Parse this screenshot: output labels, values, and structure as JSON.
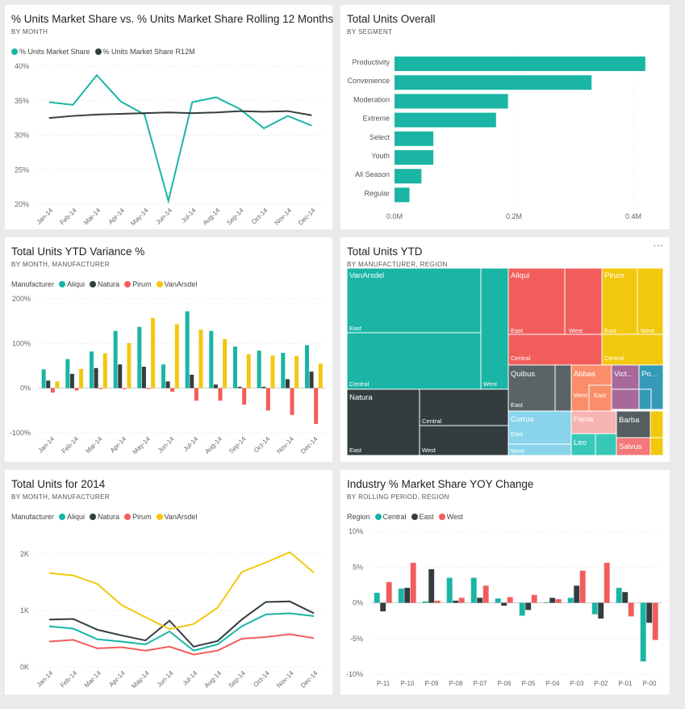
{
  "months": [
    "Jan-14",
    "Feb-14",
    "Mar-14",
    "Apr-14",
    "May-14",
    "Jun-14",
    "Jul-14",
    "Aug-14",
    "Sep-14",
    "Oct-14",
    "Nov-14",
    "Dec-14"
  ],
  "colors": {
    "aliqui": "#1ab5a4",
    "natura": "#333d3f",
    "pirum": "#f25d5c",
    "vanarsdel": "#f2c80f",
    "central": "#1ab5a4",
    "east": "#333d3f",
    "west": "#f25d5c",
    "trend": "#1ab5a4",
    "r12": "#333d3f",
    "quibus": "#5a6366",
    "abbas": "#fb8e6a",
    "victoria": "#a66999",
    "pomum": "#3599b8",
    "currus": "#8ad4eb",
    "fama": "#f5b4b2",
    "barba": "#555f61",
    "leo": "#37c9b8",
    "salvus": "#f37877",
    "natura_tm": "#333d3f",
    "extra": "#f2c80f"
  },
  "chart1": {
    "title": "% Units Market Share vs. % Units Market Share Rolling 12 Months",
    "subtitle": "BY MONTH",
    "legend": [
      "% Units Market Share",
      "% Units Market Share R12M"
    ],
    "yticks": [
      "20%",
      "25%",
      "30%",
      "35%",
      "40%"
    ],
    "chart_data": {
      "type": "line",
      "x": [
        "Jan-14",
        "Feb-14",
        "Mar-14",
        "Apr-14",
        "May-14",
        "Jun-14",
        "Jul-14",
        "Aug-14",
        "Sep-14",
        "Oct-14",
        "Nov-14",
        "Dec-14"
      ],
      "ylim": [
        20,
        40
      ],
      "series": [
        {
          "name": "% Units Market Share",
          "values": [
            34.8,
            34.4,
            38.7,
            34.9,
            33.0,
            20.5,
            34.8,
            35.5,
            33.8,
            31.0,
            32.8,
            31.4
          ]
        },
        {
          "name": "% Units Market Share R12M",
          "values": [
            32.5,
            32.8,
            33.0,
            33.1,
            33.2,
            33.3,
            33.2,
            33.3,
            33.5,
            33.4,
            33.5,
            32.9
          ]
        }
      ]
    }
  },
  "chart2": {
    "title": "Total Units Overall",
    "subtitle": "BY SEGMENT",
    "xticks": [
      "0.0M",
      "0.2M",
      "0.4M"
    ],
    "chart_data": {
      "type": "bar",
      "categories": [
        "Productivity",
        "Convenience",
        "Moderation",
        "Extreme",
        "Select",
        "Youth",
        "All Season",
        "Regular"
      ],
      "values": [
        0.42,
        0.33,
        0.19,
        0.17,
        0.065,
        0.065,
        0.045,
        0.025
      ],
      "xlim": [
        0,
        0.45
      ]
    }
  },
  "chart3": {
    "title": "Total Units YTD Variance %",
    "subtitle": "BY MONTH, MANUFACTURER",
    "legend_label": "Manufacturer",
    "legend": [
      "Aliqui",
      "Natura",
      "Pirum",
      "VanArsdel"
    ],
    "yticks": [
      "-100%",
      "0%",
      "100%",
      "200%"
    ],
    "chart_data": {
      "type": "bar",
      "categories": [
        "Jan-14",
        "Feb-14",
        "Mar-14",
        "Apr-14",
        "May-14",
        "Jun-14",
        "Jul-14",
        "Aug-14",
        "Sep-14",
        "Oct-14",
        "Nov-14",
        "Dec-14"
      ],
      "ylim": [
        -100,
        200
      ],
      "series": [
        {
          "name": "Aliqui",
          "values": [
            42,
            65,
            82,
            128,
            137,
            53,
            172,
            128,
            93,
            84,
            79,
            96
          ]
        },
        {
          "name": "Natura",
          "values": [
            17,
            32,
            45,
            53,
            48,
            15,
            30,
            8,
            3,
            3,
            20,
            37
          ]
        },
        {
          "name": "Pirum",
          "values": [
            -10,
            -5,
            -2,
            -2,
            -2,
            -8,
            -28,
            -28,
            -37,
            -50,
            -60,
            -80
          ]
        },
        {
          "name": "VanArsdel",
          "values": [
            15,
            43,
            78,
            101,
            157,
            143,
            131,
            110,
            76,
            73,
            72,
            55
          ]
        }
      ]
    }
  },
  "chart4": {
    "title": "Total Units YTD",
    "subtitle": "BY MANUFACTURER, REGION",
    "more": "···",
    "labels": {
      "vanarsdel": "VanArsdel",
      "vanarsdel_east": "East",
      "vanarsdel_central": "Central",
      "vanarsdel_west": "West",
      "aliqui": "Aliqui",
      "aliqui_east": "East",
      "aliqui_west": "West",
      "aliqui_central": "Central",
      "pirum": "Pirum",
      "pirum_east": "East",
      "pirum_west": "West",
      "pirum_central": "Central",
      "natura": "Natura",
      "natura_central": "Central",
      "natura_east": "East",
      "natura_west": "West",
      "quibus": "Quibus",
      "quibus_east": "East",
      "abbas": "Abbas",
      "abbas_west": "West",
      "abbas_east": "East",
      "victoria": "Vict...",
      "pomum": "Po...",
      "currus": "Currus",
      "currus_east": "East",
      "currus_west": "West",
      "fama": "Fama",
      "barba": "Barba",
      "leo": "Leo",
      "salvus": "Salvus"
    }
  },
  "chart5": {
    "title": "Total Units for 2014",
    "subtitle": "BY MONTH, MANUFACTURER",
    "legend_label": "Manufacturer",
    "legend": [
      "Aliqui",
      "Natura",
      "Pirum",
      "VanArsdel"
    ],
    "yticks": [
      "0K",
      "1K",
      "2K"
    ],
    "chart_data": {
      "type": "line",
      "x": [
        "Jan-14",
        "Feb-14",
        "Mar-14",
        "Apr-14",
        "May-14",
        "Jun-14",
        "Jul-14",
        "Aug-14",
        "Sep-14",
        "Oct-14",
        "Nov-14",
        "Dec-14"
      ],
      "ylim": [
        0,
        2.4
      ],
      "series": [
        {
          "name": "Aliqui",
          "values": [
            0.72,
            0.68,
            0.49,
            0.45,
            0.4,
            0.63,
            0.29,
            0.4,
            0.72,
            0.93,
            0.95,
            0.9
          ]
        },
        {
          "name": "Natura",
          "values": [
            0.84,
            0.85,
            0.66,
            0.56,
            0.47,
            0.82,
            0.36,
            0.46,
            0.84,
            1.15,
            1.16,
            0.95
          ]
        },
        {
          "name": "Pirum",
          "values": [
            0.45,
            0.48,
            0.33,
            0.35,
            0.29,
            0.36,
            0.22,
            0.29,
            0.5,
            0.53,
            0.58,
            0.51
          ]
        },
        {
          "name": "VanArsdel",
          "values": [
            1.66,
            1.62,
            1.47,
            1.1,
            0.88,
            0.67,
            0.76,
            1.05,
            1.68,
            1.85,
            2.03,
            1.67
          ]
        }
      ]
    }
  },
  "chart6": {
    "title": "Industry % Market Share YOY Change",
    "subtitle": "BY ROLLING PERIOD, REGION",
    "legend_label": "Region",
    "legend": [
      "Central",
      "East",
      "West"
    ],
    "yticks": [
      "-10%",
      "-5%",
      "0%",
      "5%",
      "10%"
    ],
    "chart_data": {
      "type": "bar",
      "categories": [
        "P-11",
        "P-10",
        "P-09",
        "P-08",
        "P-07",
        "P-06",
        "P-05",
        "P-04",
        "P-03",
        "P-02",
        "P-01",
        "P-00"
      ],
      "ylim": [
        -10,
        10
      ],
      "series": [
        {
          "name": "Central",
          "values": [
            1.4,
            2.0,
            0.2,
            3.5,
            3.5,
            0.6,
            -1.8,
            0.1,
            0.7,
            -1.6,
            2.1,
            -8.2
          ]
        },
        {
          "name": "East",
          "values": [
            -1.2,
            2.1,
            4.7,
            0.3,
            0.7,
            -0.4,
            -1.0,
            0.7,
            2.4,
            -2.2,
            1.5,
            -2.8
          ]
        },
        {
          "name": "West",
          "values": [
            2.9,
            5.6,
            0.3,
            0.7,
            2.4,
            0.8,
            1.1,
            0.5,
            4.5,
            5.6,
            -1.9,
            -5.2
          ]
        }
      ]
    }
  }
}
